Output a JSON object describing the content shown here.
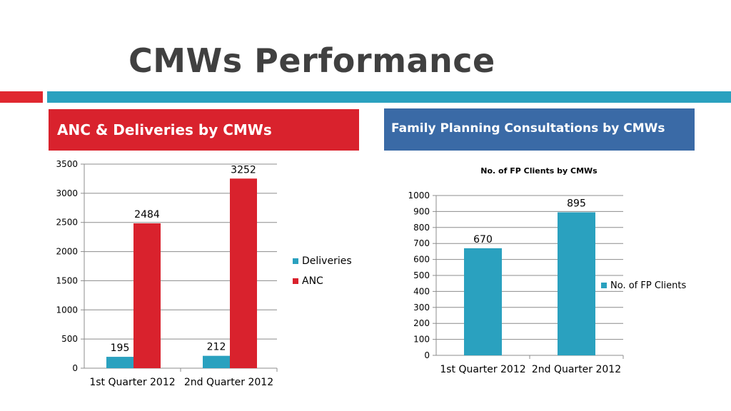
{
  "slide": {
    "title": "CMWs Performance",
    "accent_red": "#e0272f",
    "accent_teal": "#2aa1bf"
  },
  "left_panel": {
    "header": "ANC & Deliveries by CMWs",
    "header_color": "#d9222d"
  },
  "right_panel": {
    "header": "Family Planning Consultations by CMWs",
    "header_color": "#3a6aa6"
  },
  "chart_data": [
    {
      "type": "bar",
      "title": "",
      "categories": [
        "1st Quarter 2012",
        "2nd Quarter 2012"
      ],
      "series": [
        {
          "name": "Deliveries",
          "values": [
            195,
            212
          ],
          "color": "#2aa1bf"
        },
        {
          "name": "ANC",
          "values": [
            2484,
            3252
          ],
          "color": "#d9222d"
        }
      ],
      "ylim": [
        0,
        3500
      ],
      "yticks": [
        0,
        500,
        1000,
        1500,
        2000,
        2500,
        3000,
        3500
      ],
      "grid": true,
      "legend": "right"
    },
    {
      "type": "bar",
      "title": "No. of FP Clients by CMWs",
      "categories": [
        "1st Quarter 2012",
        "2nd Quarter 2012"
      ],
      "series": [
        {
          "name": "No. of FP Clients",
          "values": [
            670,
            895
          ],
          "color": "#2aa1bf"
        }
      ],
      "ylim": [
        0,
        1000
      ],
      "yticks": [
        0,
        100,
        200,
        300,
        400,
        500,
        600,
        700,
        800,
        900,
        1000
      ],
      "grid": true,
      "legend": "right"
    }
  ]
}
